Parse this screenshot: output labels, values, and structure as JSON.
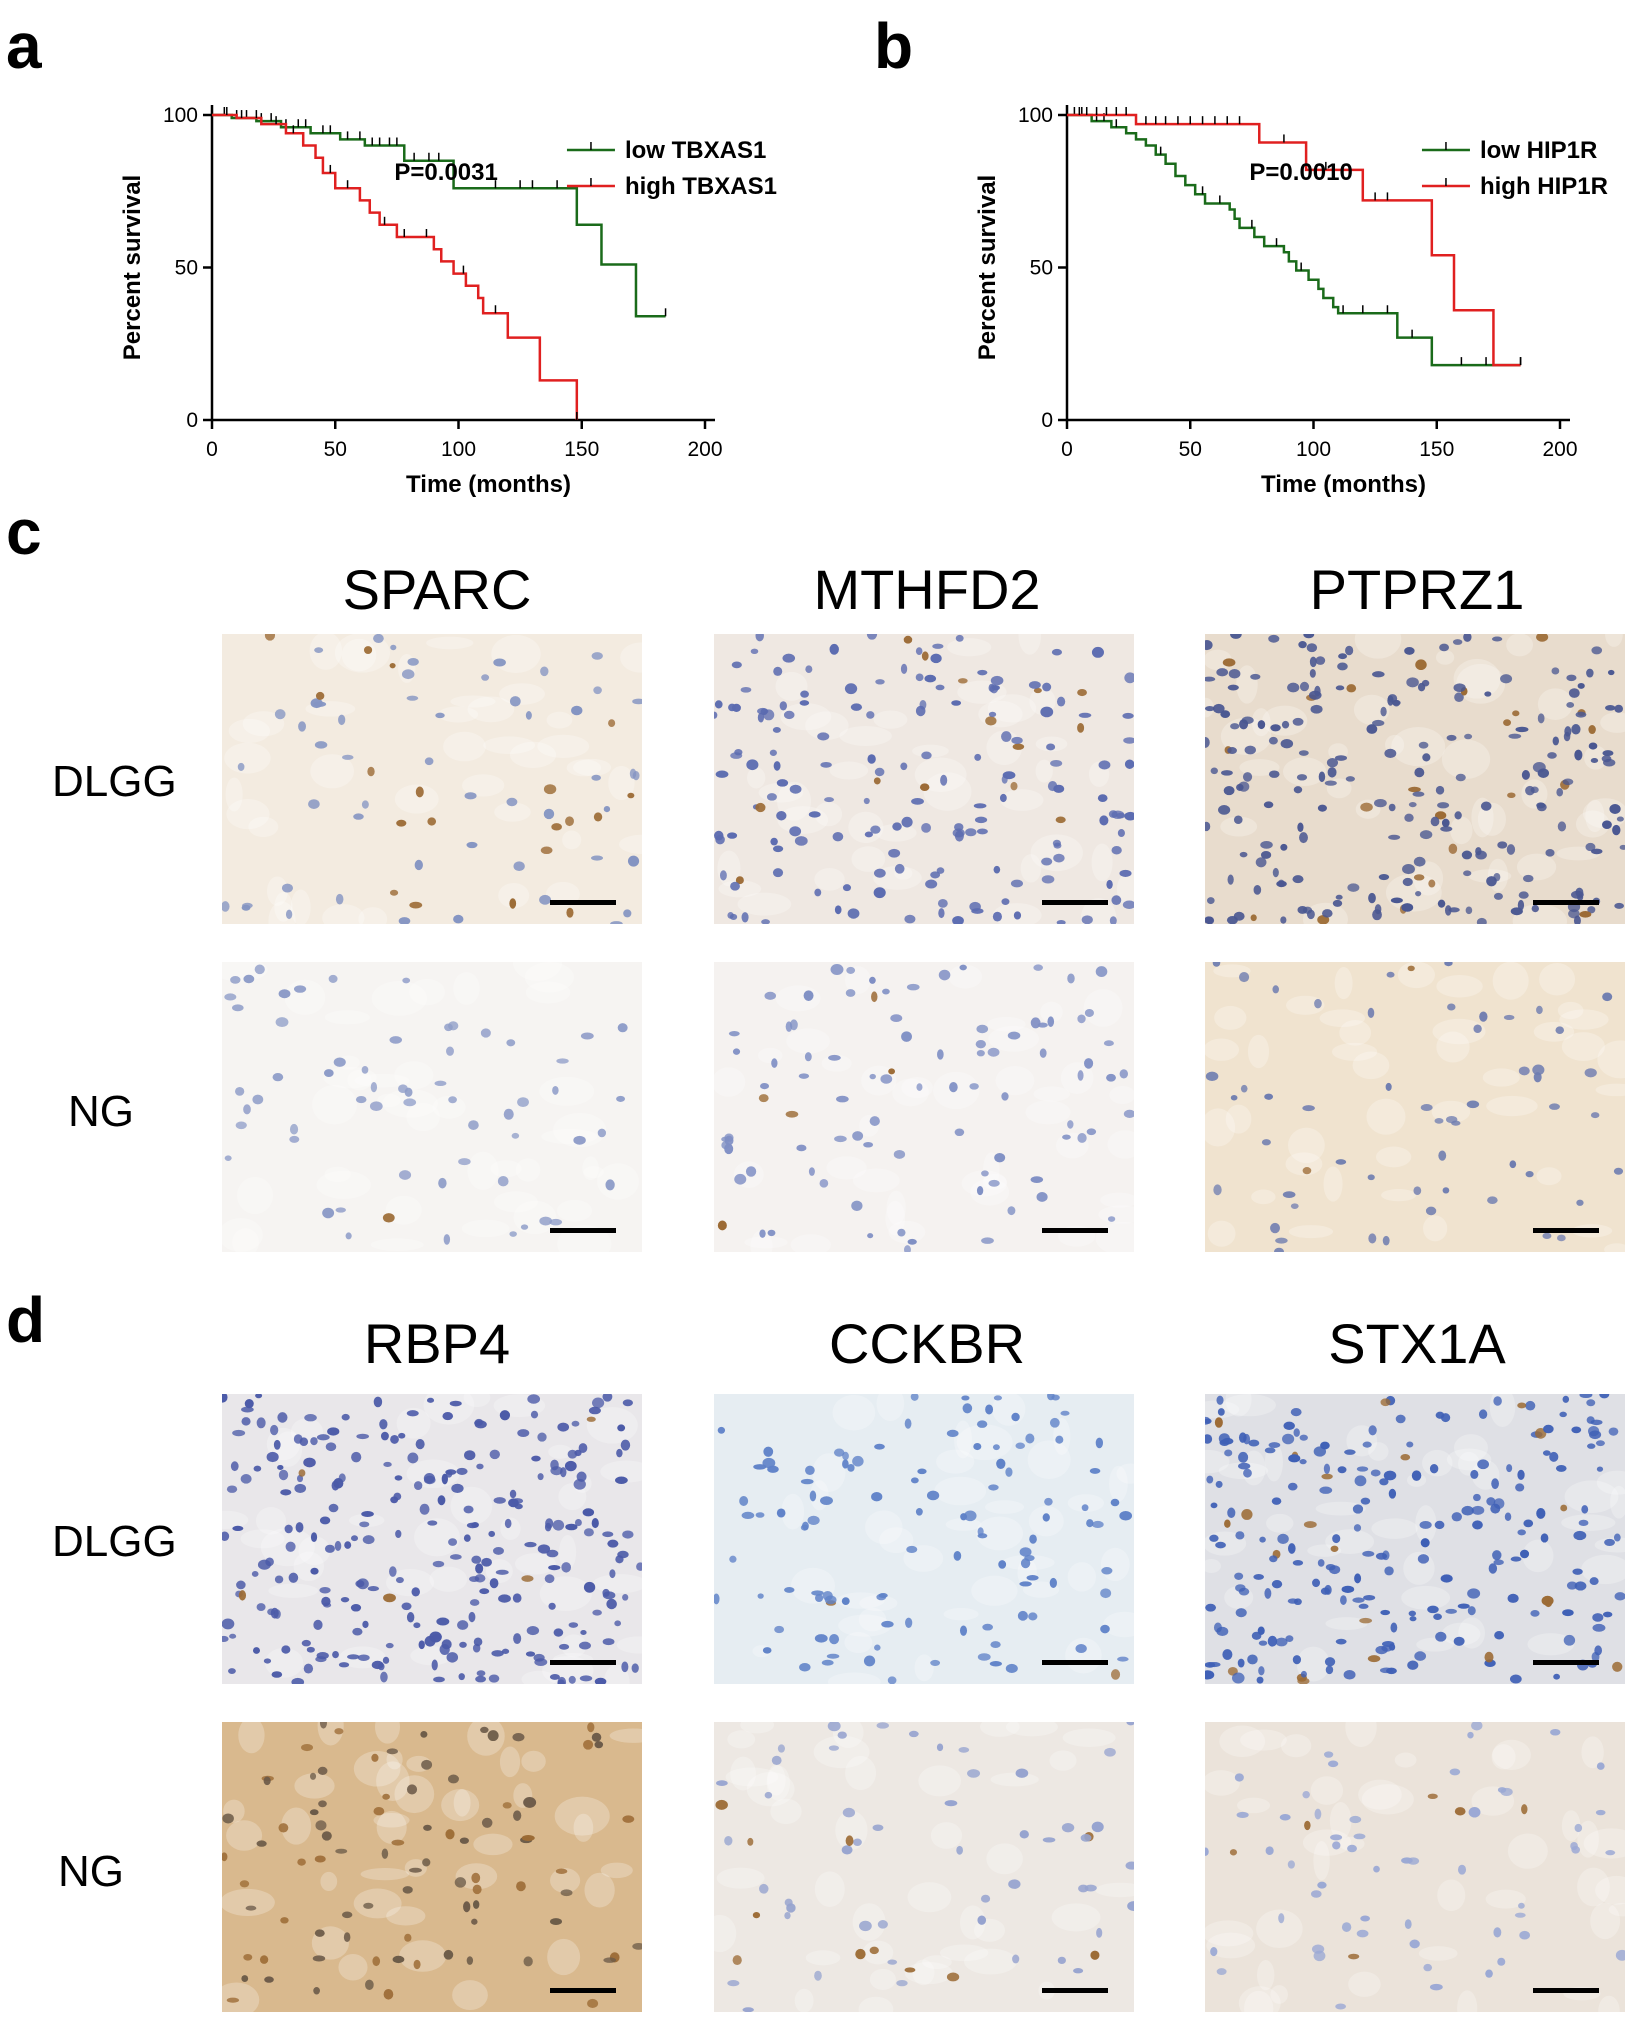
{
  "panels": {
    "a": {
      "letter": "a"
    },
    "b": {
      "letter": "b"
    },
    "c": {
      "letter": "c"
    },
    "d": {
      "letter": "d"
    }
  },
  "chart_data": [
    {
      "id": "a",
      "type": "line",
      "subtype": "kaplan-meier-step",
      "xlabel": "Time (months)",
      "ylabel": "Percent survival",
      "xlim": [
        0,
        200
      ],
      "ylim": [
        0,
        100
      ],
      "xticks": [
        0,
        50,
        100,
        150,
        200
      ],
      "yticks": [
        0,
        50,
        100
      ],
      "annotation": "P=0.0031",
      "legend_position": "top-right",
      "series": [
        {
          "name": "low TBXAS1",
          "color": "#1a6b1a",
          "steps": [
            [
              0,
              100
            ],
            [
              8,
              99
            ],
            [
              18,
              98
            ],
            [
              28,
              96
            ],
            [
              40,
              94
            ],
            [
              52,
              92
            ],
            [
              62,
              90
            ],
            [
              78,
              85
            ],
            [
              98,
              76
            ],
            [
              148,
              64
            ],
            [
              158,
              51
            ],
            [
              172,
              34
            ],
            [
              184,
              34
            ]
          ],
          "censored": [
            5,
            10,
            14,
            20,
            24,
            30,
            35,
            38,
            45,
            48,
            55,
            60,
            65,
            68,
            72,
            75,
            82,
            88,
            92,
            115,
            125,
            130,
            140,
            184
          ]
        },
        {
          "name": "high TBXAS1",
          "color": "#e02020",
          "steps": [
            [
              0,
              100
            ],
            [
              10,
              99
            ],
            [
              20,
              97
            ],
            [
              30,
              94
            ],
            [
              37,
              90
            ],
            [
              42,
              86
            ],
            [
              45,
              81
            ],
            [
              50,
              76
            ],
            [
              60,
              72
            ],
            [
              64,
              68
            ],
            [
              68,
              64
            ],
            [
              75,
              60
            ],
            [
              90,
              56
            ],
            [
              93,
              52
            ],
            [
              98,
              48
            ],
            [
              103,
              44
            ],
            [
              108,
              40
            ],
            [
              110,
              35
            ],
            [
              120,
              27
            ],
            [
              133,
              13
            ],
            [
              148,
              0
            ]
          ],
          "censored": [
            6,
            12,
            18,
            26,
            33,
            48,
            55,
            70,
            78,
            87,
            102,
            115,
            148
          ]
        }
      ]
    },
    {
      "id": "b",
      "type": "line",
      "subtype": "kaplan-meier-step",
      "xlabel": "Time (months)",
      "ylabel": "Percent survival",
      "xlim": [
        0,
        200
      ],
      "ylim": [
        0,
        100
      ],
      "xticks": [
        0,
        50,
        100,
        150,
        200
      ],
      "yticks": [
        0,
        50,
        100
      ],
      "annotation": "P=0.0010",
      "legend_position": "top-right",
      "series": [
        {
          "name": "low HIP1R",
          "color": "#1a6b1a",
          "steps": [
            [
              0,
              100
            ],
            [
              10,
              98
            ],
            [
              18,
              96
            ],
            [
              24,
              94
            ],
            [
              28,
              92
            ],
            [
              32,
              90
            ],
            [
              36,
              87
            ],
            [
              40,
              84
            ],
            [
              44,
              80
            ],
            [
              48,
              77
            ],
            [
              52,
              74
            ],
            [
              56,
              71
            ],
            [
              66,
              69
            ],
            [
              68,
              66
            ],
            [
              70,
              63
            ],
            [
              76,
              60
            ],
            [
              80,
              57
            ],
            [
              88,
              55
            ],
            [
              90,
              52
            ],
            [
              93,
              49
            ],
            [
              98,
              46
            ],
            [
              102,
              43
            ],
            [
              104,
              40
            ],
            [
              108,
              37
            ],
            [
              110,
              35
            ],
            [
              134,
              27
            ],
            [
              148,
              18
            ],
            [
              184,
              18
            ]
          ],
          "censored": [
            3,
            6,
            12,
            15,
            20,
            38,
            55,
            62,
            75,
            85,
            95,
            112,
            120,
            130,
            140,
            160,
            170,
            184
          ]
        },
        {
          "name": "high HIP1R",
          "color": "#e02020",
          "steps": [
            [
              0,
              100
            ],
            [
              28,
              97
            ],
            [
              78,
              91
            ],
            [
              97,
              82
            ],
            [
              120,
              72
            ],
            [
              148,
              54
            ],
            [
              157,
              36
            ],
            [
              173,
              18
            ],
            [
              184,
              18
            ]
          ],
          "censored": [
            5,
            8,
            12,
            16,
            20,
            24,
            32,
            36,
            40,
            45,
            50,
            55,
            60,
            65,
            70,
            88,
            105,
            125,
            130,
            184
          ]
        }
      ]
    }
  ],
  "ihc": {
    "c": {
      "genes": [
        "SPARC",
        "MTHFD2",
        "PTPRZ1"
      ],
      "rows": [
        "DLGG",
        "NG"
      ]
    },
    "d": {
      "genes": [
        "RBP4",
        "CCKBR",
        "STX1A"
      ],
      "rows": [
        "DLGG",
        "NG"
      ]
    }
  },
  "colors": {
    "low_group": "#1a6b1a",
    "high_group": "#e02020",
    "hematoxylin_nuclei": "#3b56a6",
    "dab_brown": "#9c6b35"
  }
}
